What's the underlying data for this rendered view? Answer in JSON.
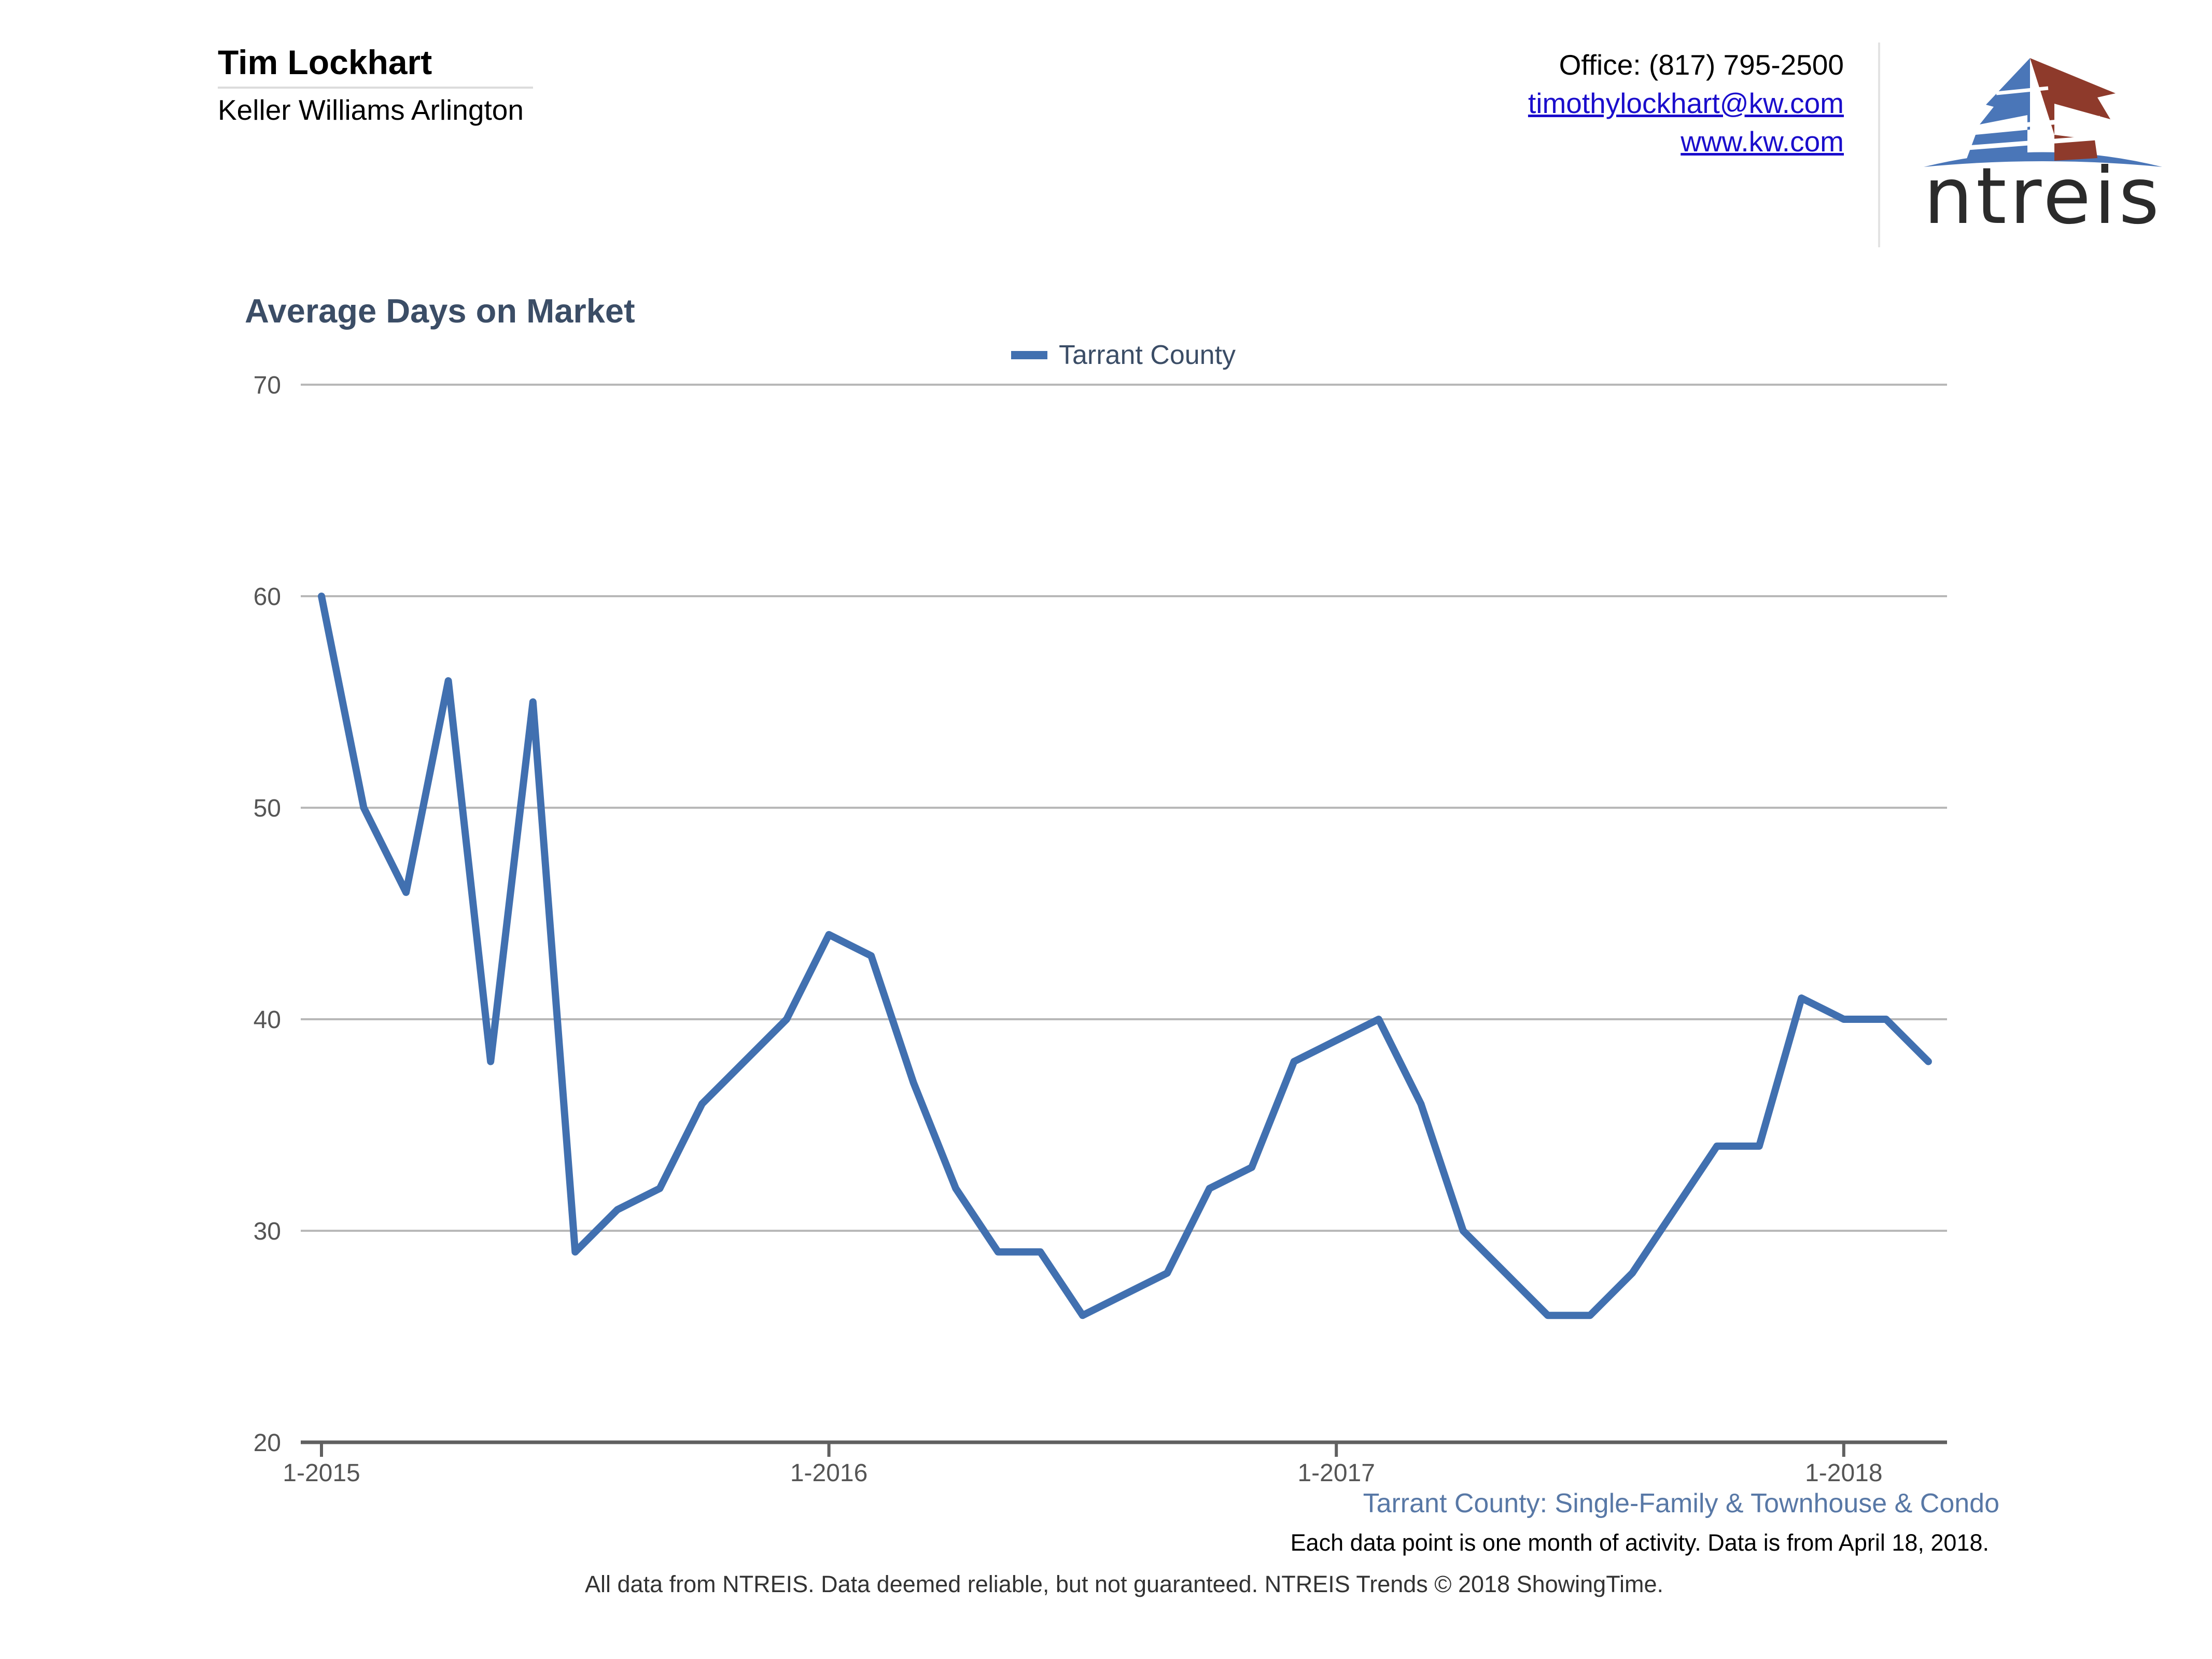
{
  "header": {
    "agent_name": "Tim Lockhart",
    "company": "Keller Williams Arlington",
    "office": "Office: (817) 795-2500",
    "email": "timothylockhart@kw.com",
    "website": "www.kw.com",
    "logo_text": "ntreis"
  },
  "colors": {
    "series": "#4170b0",
    "title": "#3b4d66",
    "logo_blue": "#4a76b8",
    "logo_red": "#8e3a2b",
    "link": "#1a0dcc"
  },
  "chart_data": {
    "type": "line",
    "title": "Average Days on Market",
    "xlabel": "",
    "ylabel": "",
    "ylim": [
      20,
      70
    ],
    "yticks": [
      20,
      30,
      40,
      50,
      60,
      70
    ],
    "xticks": [
      "1-2015",
      "1-2016",
      "1-2017",
      "1-2018"
    ],
    "grid": true,
    "legend_position": "top-center",
    "x": [
      "1-2015",
      "2-2015",
      "3-2015",
      "4-2015",
      "5-2015",
      "6-2015",
      "7-2015",
      "8-2015",
      "9-2015",
      "10-2015",
      "11-2015",
      "12-2015",
      "1-2016",
      "2-2016",
      "3-2016",
      "4-2016",
      "5-2016",
      "6-2016",
      "7-2016",
      "8-2016",
      "9-2016",
      "10-2016",
      "11-2016",
      "12-2016",
      "1-2017",
      "2-2017",
      "3-2017",
      "4-2017",
      "5-2017",
      "6-2017",
      "7-2017",
      "8-2017",
      "9-2017",
      "10-2017",
      "11-2017",
      "12-2017",
      "1-2018",
      "2-2018",
      "3-2018"
    ],
    "series": [
      {
        "name": "Tarrant County",
        "values": [
          60,
          50,
          46,
          56,
          38,
          55,
          29,
          31,
          32,
          36,
          38,
          40,
          44,
          43,
          37,
          32,
          29,
          29,
          26,
          27,
          28,
          32,
          33,
          38,
          39,
          40,
          36,
          30,
          28,
          26,
          26,
          28,
          31,
          34,
          34,
          41,
          40,
          40,
          38
        ]
      }
    ],
    "subtitle": "Tarrant County: Single-Family & Townhouse & Condo"
  },
  "footer": {
    "note": "Each data point is one month of activity. Data is from April 18, 2018.",
    "disclaimer": "All data from NTREIS. Data deemed reliable, but not guaranteed. NTREIS Trends © 2018 ShowingTime."
  }
}
